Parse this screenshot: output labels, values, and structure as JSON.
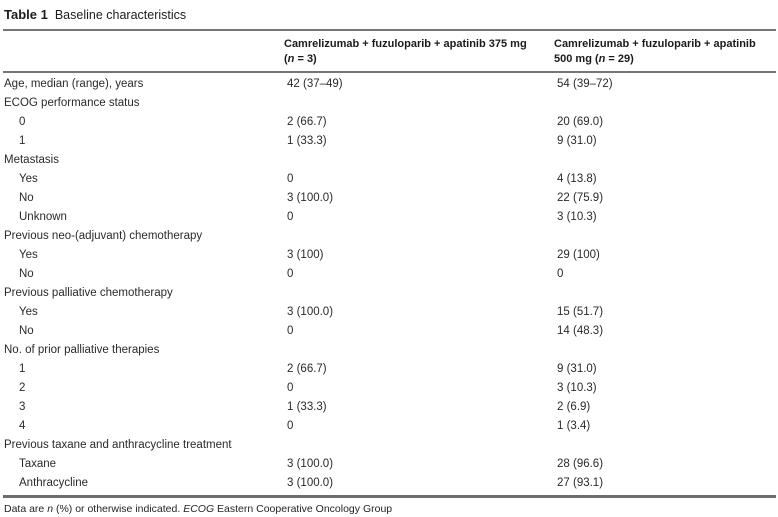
{
  "colors": {
    "text": "#2b2a2a",
    "rule": "#767676",
    "background": "#ffffff"
  },
  "title": {
    "label": "Table 1",
    "caption": "Baseline characteristics"
  },
  "table": {
    "header": {
      "col1": {
        "line1": "Camrelizumab + fuzuloparib + apatinib 375 mg",
        "line2_pre": "(",
        "n": "n",
        "line2_post": " = 3)"
      },
      "col2": {
        "line1": "Camrelizumab + fuzuloparib + apatinib",
        "line2_pre": "500 mg (",
        "n": "n",
        "line2_post": " = 29)"
      }
    },
    "rows": [
      {
        "label": "Age, median (range), years",
        "indent": false,
        "col1": "42 (37–49)",
        "col2": "54 (39–72)"
      },
      {
        "label": "ECOG performance status",
        "indent": false,
        "col1": "",
        "col2": ""
      },
      {
        "label": "0",
        "indent": true,
        "col1": "2 (66.7)",
        "col2": "20 (69.0)"
      },
      {
        "label": "1",
        "indent": true,
        "col1": "1 (33.3)",
        "col2": "9 (31.0)"
      },
      {
        "label": "Metastasis",
        "indent": false,
        "col1": "",
        "col2": ""
      },
      {
        "label": "Yes",
        "indent": true,
        "col1": "0",
        "col2": "4 (13.8)"
      },
      {
        "label": "No",
        "indent": true,
        "col1": "3 (100.0)",
        "col2": "22 (75.9)"
      },
      {
        "label": "Unknown",
        "indent": true,
        "col1": "0",
        "col2": "3 (10.3)"
      },
      {
        "label": "Previous neo-(adjuvant) chemotherapy",
        "indent": false,
        "col1": "",
        "col2": ""
      },
      {
        "label": "Yes",
        "indent": true,
        "col1": "3 (100)",
        "col2": "29 (100)"
      },
      {
        "label": "No",
        "indent": true,
        "col1": "0",
        "col2": "0"
      },
      {
        "label": "Previous palliative chemotherapy",
        "indent": false,
        "col1": "",
        "col2": ""
      },
      {
        "label": "Yes",
        "indent": true,
        "col1": "3 (100.0)",
        "col2": "15 (51.7)"
      },
      {
        "label": "No",
        "indent": true,
        "col1": "0",
        "col2": "14 (48.3)"
      },
      {
        "label": "No. of prior palliative therapies",
        "indent": false,
        "col1": "",
        "col2": ""
      },
      {
        "label": "1",
        "indent": true,
        "col1": "2 (66.7)",
        "col2": "9 (31.0)"
      },
      {
        "label": "2",
        "indent": true,
        "col1": "0",
        "col2": "3 (10.3)"
      },
      {
        "label": "3",
        "indent": true,
        "col1": "1 (33.3)",
        "col2": "2 (6.9)"
      },
      {
        "label": "4",
        "indent": true,
        "col1": "0",
        "col2": "1 (3.4)"
      },
      {
        "label": "Previous taxane and anthracycline treatment",
        "indent": false,
        "col1": "",
        "col2": ""
      },
      {
        "label": "Taxane",
        "indent": true,
        "col1": "3 (100.0)",
        "col2": "28 (96.6)"
      },
      {
        "label": "Anthracycline",
        "indent": true,
        "col1": "3 (100.0)",
        "col2": "27 (93.1)"
      }
    ]
  },
  "footnote": {
    "pre": "Data are ",
    "n": "n",
    "mid": " (%) or otherwise indicated. ",
    "ecog": "ECOG",
    "post": " Eastern Cooperative Oncology Group"
  }
}
